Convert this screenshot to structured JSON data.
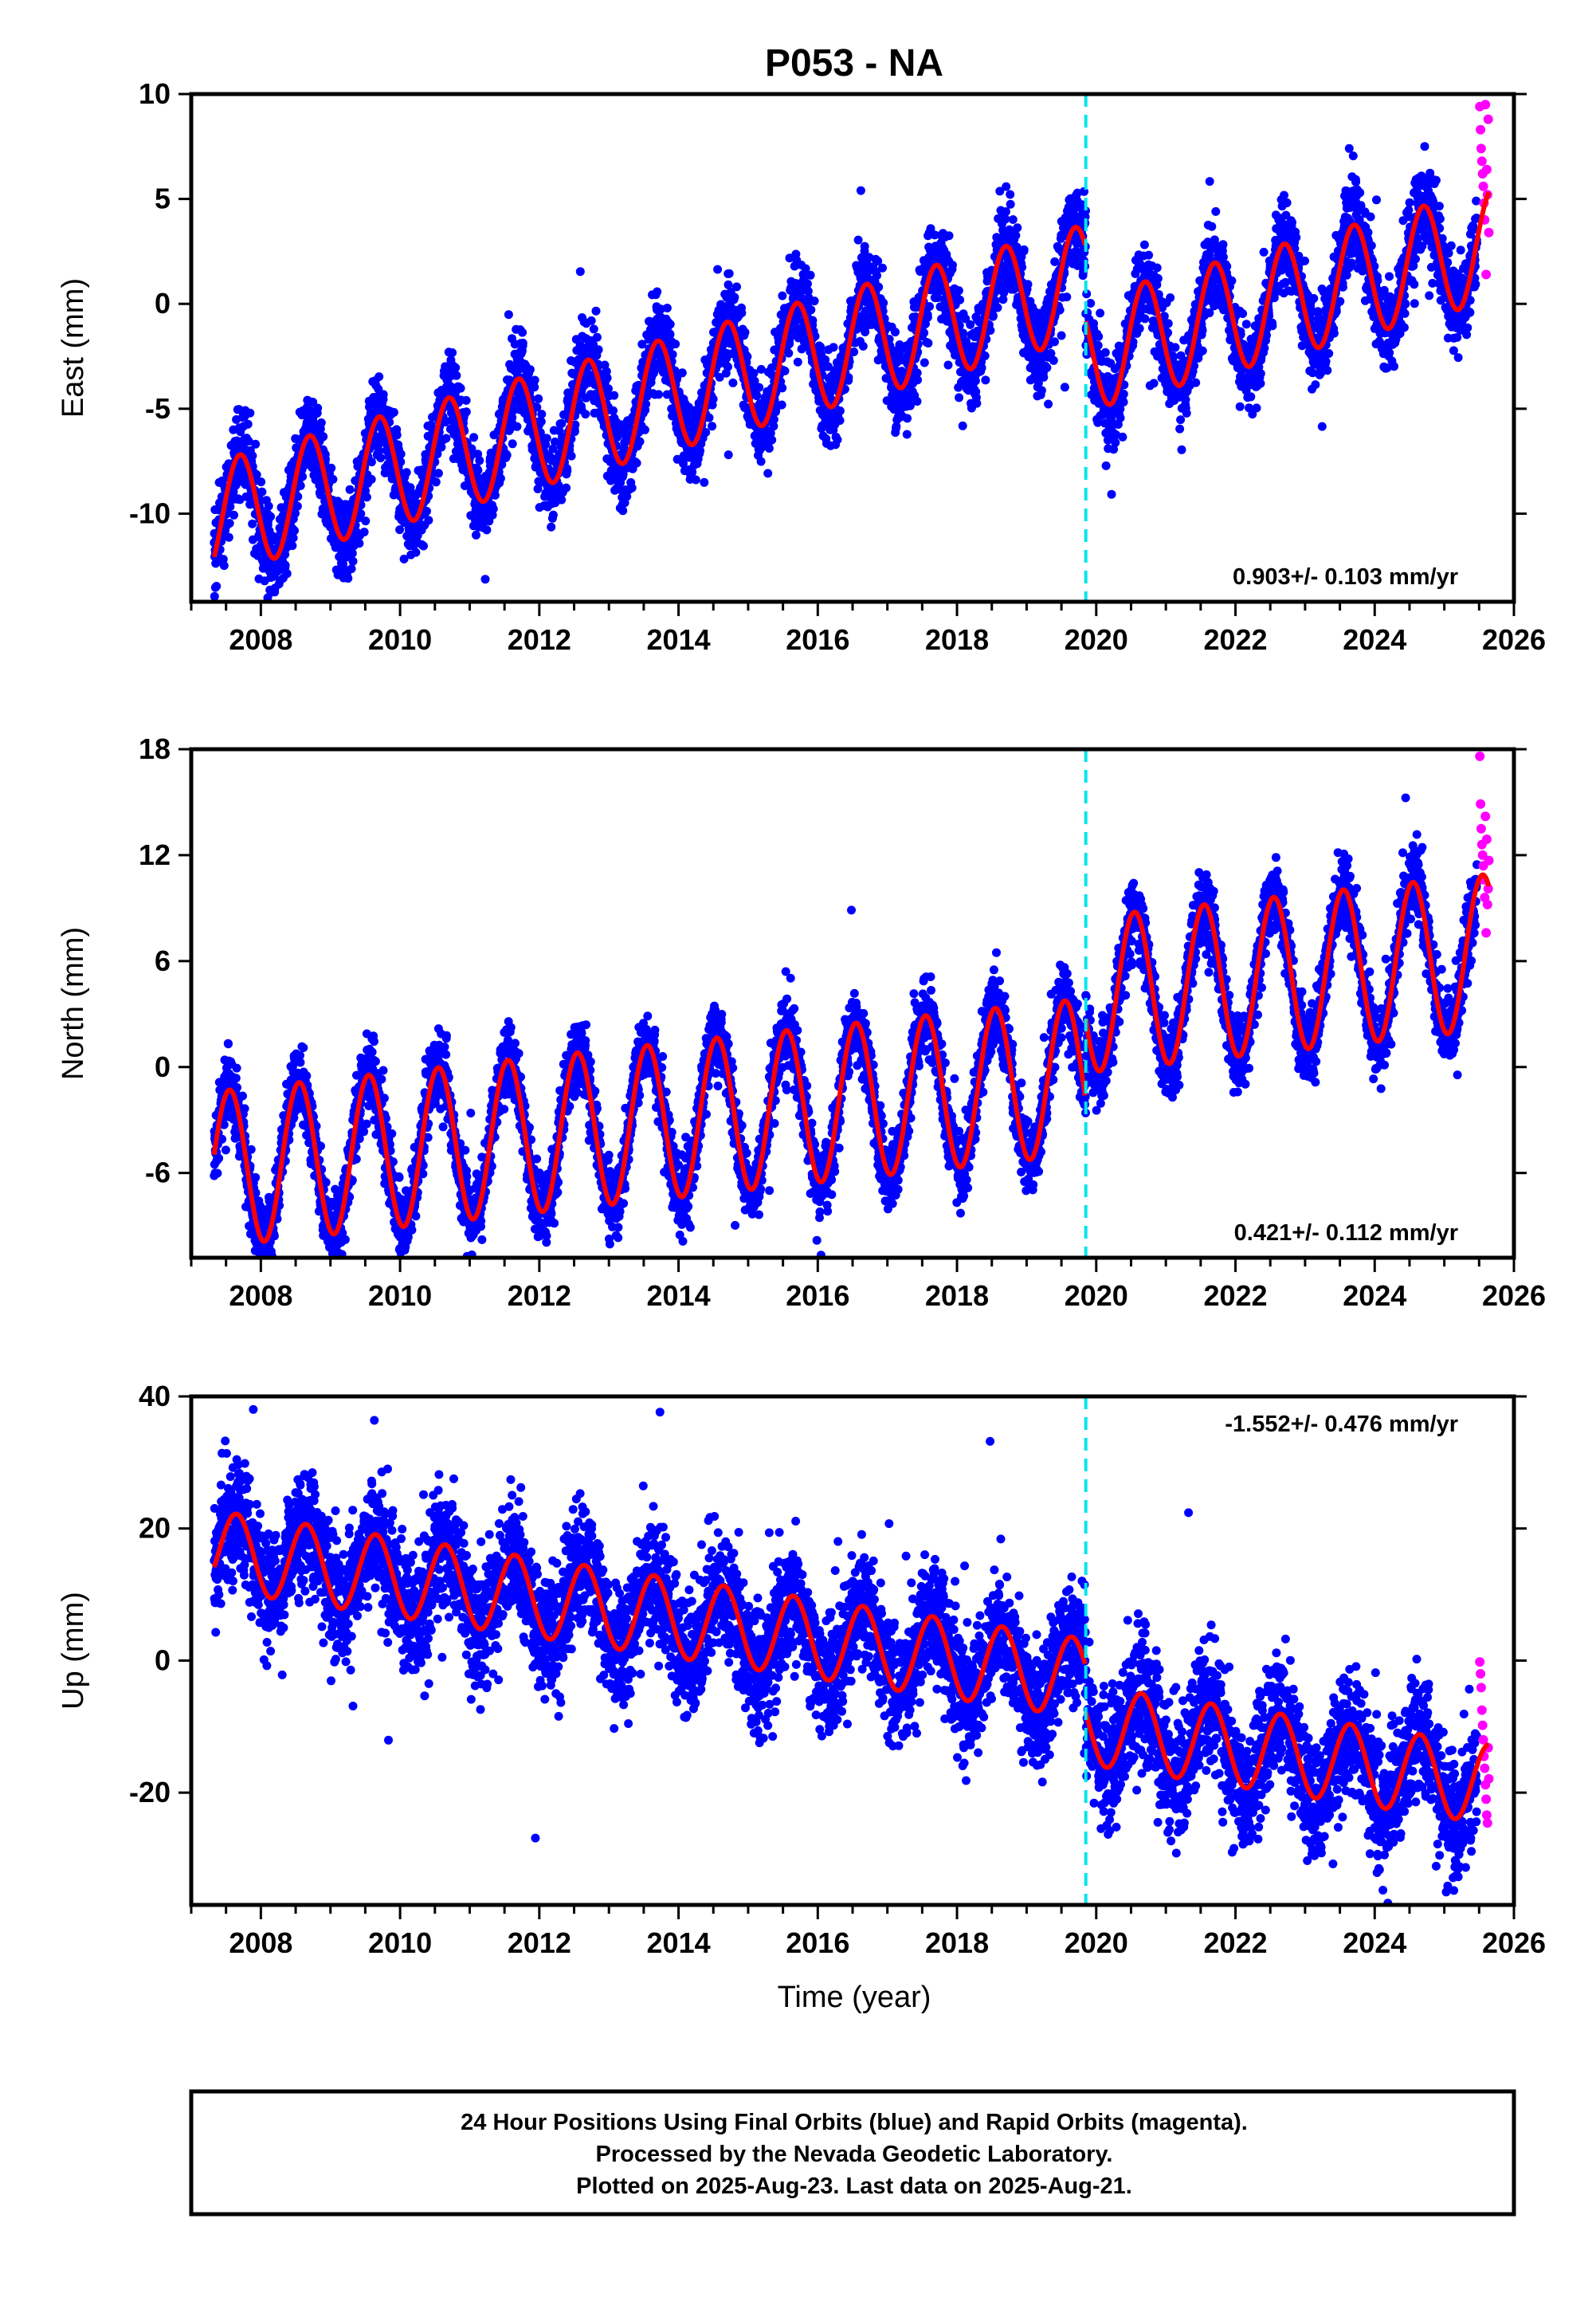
{
  "title": "P053 - NA",
  "x_axis_label": "Time (year)",
  "footer": [
    "24 Hour Positions Using Final Orbits (blue) and Rapid Orbits (magenta).",
    "Processed by the Nevada Geodetic Laboratory.",
    "Plotted on 2025-Aug-23. Last data on 2025-Aug-21."
  ],
  "colors": {
    "final_orbits": "#0000ff",
    "rapid_orbits": "#ff00ff",
    "model_fit": "#ff0000",
    "offset_line": "#00e5ee"
  },
  "chart_data": [
    {
      "type": "scatter",
      "component": "east",
      "ylabel": "East (mm)",
      "xlim": [
        2007.0,
        2026.0
      ],
      "ylim": [
        -14.2,
        10.0
      ],
      "yticks": [
        -10,
        -5,
        0,
        5,
        10
      ],
      "xticks": [
        2008,
        2010,
        2012,
        2014,
        2016,
        2018,
        2020,
        2022,
        2024,
        2026
      ],
      "rate_label": "0.903+/- 0.103 mm/yr",
      "rate_position": "bottom-right",
      "offset_epoch": 2019.85,
      "data_start": 2007.33,
      "data_end": 2025.47,
      "rapid_start": 2025.5,
      "rapid_end": 2025.64,
      "series": [
        {
          "name": "Final Orbits",
          "style": "points",
          "color": "#0000ff",
          "model": {
            "t0": 2013.0,
            "intercept": -5.1,
            "slope": 0.903,
            "amp": 2.7,
            "phase_peak_year_fraction": 0.7,
            "offset_at_epoch": -3.5,
            "noise_sd": 1.0
          }
        },
        {
          "name": "Rapid Orbits",
          "style": "points",
          "color": "#ff00ff",
          "values": [
            [
              2025.51,
              9.4
            ],
            [
              2025.52,
              8.3
            ],
            [
              2025.53,
              7.4
            ],
            [
              2025.54,
              6.8
            ],
            [
              2025.55,
              6.2
            ],
            [
              2025.56,
              5.6
            ],
            [
              2025.57,
              4.8
            ],
            [
              2025.58,
              4.0
            ],
            [
              2025.59,
              9.5
            ],
            [
              2025.6,
              1.4
            ],
            [
              2025.61,
              6.4
            ],
            [
              2025.62,
              5.2
            ],
            [
              2025.63,
              8.8
            ],
            [
              2025.64,
              3.4
            ]
          ]
        },
        {
          "name": "Model Fit",
          "style": "line",
          "color": "#ff0000"
        }
      ]
    },
    {
      "type": "scatter",
      "component": "north",
      "ylabel": "North (mm)",
      "xlim": [
        2007.0,
        2026.0
      ],
      "ylim": [
        -10.8,
        18.0
      ],
      "yticks": [
        -6,
        0,
        6,
        12,
        18
      ],
      "xticks": [
        2008,
        2010,
        2012,
        2014,
        2016,
        2018,
        2020,
        2022,
        2024,
        2026
      ],
      "rate_label": "0.421+/- 0.112 mm/yr",
      "rate_position": "bottom-right",
      "offset_epoch": 2019.85,
      "data_start": 2007.33,
      "data_end": 2025.47,
      "rapid_start": 2025.5,
      "rapid_end": 2025.64,
      "series": [
        {
          "name": "Final Orbits",
          "style": "points",
          "color": "#0000ff",
          "model": {
            "t0": 2013.0,
            "intercept": -3.4,
            "slope": 0.421,
            "amp": 4.4,
            "phase_peak_year_fraction": 0.55,
            "offset_at_epoch": 4.6,
            "noise_sd": 1.0
          }
        },
        {
          "name": "Rapid Orbits",
          "style": "points",
          "color": "#ff00ff",
          "values": [
            [
              2025.51,
              17.6
            ],
            [
              2025.52,
              14.9
            ],
            [
              2025.53,
              13.5
            ],
            [
              2025.54,
              12.6
            ],
            [
              2025.55,
              12.0
            ],
            [
              2025.56,
              11.4
            ],
            [
              2025.57,
              10.6
            ],
            [
              2025.58,
              9.6
            ],
            [
              2025.59,
              14.2
            ],
            [
              2025.6,
              7.6
            ],
            [
              2025.61,
              12.9
            ],
            [
              2025.62,
              9.2
            ],
            [
              2025.63,
              10.1
            ],
            [
              2025.64,
              11.7
            ]
          ]
        },
        {
          "name": "Model Fit",
          "style": "line",
          "color": "#ff0000"
        }
      ]
    },
    {
      "type": "scatter",
      "component": "up",
      "ylabel": "Up (mm)",
      "xlim": [
        2007.0,
        2026.0
      ],
      "ylim": [
        -37.0,
        40.0
      ],
      "yticks": [
        -20,
        0,
        20,
        40
      ],
      "xticks": [
        2008,
        2010,
        2012,
        2014,
        2016,
        2018,
        2020,
        2022,
        2024,
        2026
      ],
      "rate_label": "-1.552+/- 0.476 mm/yr",
      "rate_position": "top-right",
      "offset_epoch": 2019.85,
      "data_start": 2007.33,
      "data_end": 2025.47,
      "rapid_start": 2025.5,
      "rapid_end": 2025.64,
      "series": [
        {
          "name": "Final Orbits",
          "style": "points",
          "color": "#0000ff",
          "model": {
            "t0": 2013.0,
            "intercept": 7.9,
            "slope": -1.552,
            "amp": 6.0,
            "phase_peak_year_fraction": 0.65,
            "offset_at_epoch": -7.0,
            "noise_sd": 4.6
          }
        },
        {
          "name": "Rapid Orbits",
          "style": "points",
          "color": "#ff00ff",
          "values": [
            [
              2025.51,
              -0.2
            ],
            [
              2025.52,
              -2.0
            ],
            [
              2025.53,
              -4.1
            ],
            [
              2025.54,
              -7.5
            ],
            [
              2025.55,
              -9.8
            ],
            [
              2025.56,
              -12.0
            ],
            [
              2025.57,
              -14.5
            ],
            [
              2025.58,
              -16.3
            ],
            [
              2025.59,
              -18.8
            ],
            [
              2025.6,
              -21.0
            ],
            [
              2025.61,
              -23.4
            ],
            [
              2025.62,
              -24.6
            ],
            [
              2025.63,
              -13.2
            ],
            [
              2025.64,
              -17.9
            ]
          ]
        },
        {
          "name": "Model Fit",
          "style": "line",
          "color": "#ff0000"
        }
      ]
    }
  ]
}
